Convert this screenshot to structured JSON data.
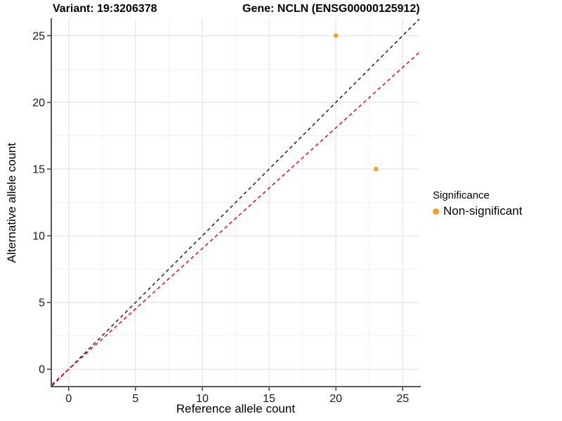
{
  "chart_data": {
    "type": "scatter",
    "title_left": "Variant: 19:3206378",
    "title_right": "Gene: NCLN (ENSG00000125912)",
    "xlabel": "Reference allele count",
    "ylabel": "Alternative allele count",
    "xlim": [
      -1.25,
      26.25
    ],
    "ylim": [
      -1.25,
      26.25
    ],
    "x_ticks": [
      0,
      5,
      10,
      15,
      20,
      25
    ],
    "y_ticks": [
      0,
      5,
      10,
      15,
      20,
      25
    ],
    "grid": {
      "major": true,
      "minor": true
    },
    "legend": {
      "position": "right",
      "title": "Significance",
      "items": [
        {
          "label": "Non-significant",
          "color": "#F8A02C"
        }
      ]
    },
    "series": [
      {
        "name": "Non-significant",
        "color": "#F8A02C",
        "points": [
          [
            20,
            25
          ],
          [
            23,
            15
          ]
        ]
      }
    ],
    "reference_lines": [
      {
        "name": "identity",
        "slope": 1,
        "intercept": 0,
        "style": "dashed",
        "color": "#222222"
      },
      {
        "name": "expected-ratio",
        "slope": 0.905,
        "intercept": 0,
        "style": "dashed",
        "color": "#FF0000"
      }
    ],
    "panel_background": "#FFFFFF",
    "grid_major_color": "#E4E4E4",
    "grid_minor_color": "#F1F1F1",
    "axis_line_color": "#454545"
  }
}
